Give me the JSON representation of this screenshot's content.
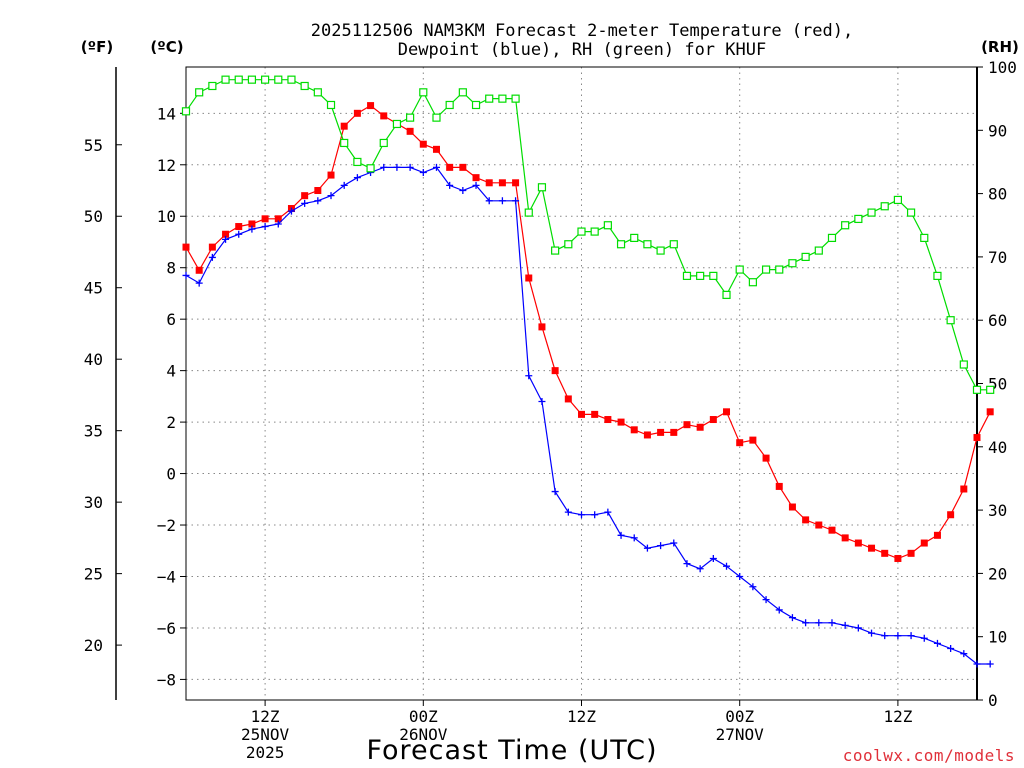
{
  "chart_data": {
    "type": "line",
    "title_line1": "2025112506 NAM3KM Forecast 2-meter Temperature (red),",
    "title_line2": "Dewpoint (blue), RH (green) for KHUF",
    "xlabel": "Forecast Time (UTC)",
    "unit_labels": {
      "fahrenheit": "(ºF)",
      "celsius": "(ºC)",
      "rh": "(RH)"
    },
    "credit": "coolwx.com/models",
    "x_hours_range": [
      0,
      60
    ],
    "y_celsius_range": [
      -8.8,
      15.8
    ],
    "y_rh_range": [
      0,
      100
    ],
    "celsius_ticks": [
      14,
      12,
      10,
      8,
      6,
      4,
      2,
      0,
      -2,
      -4,
      -6,
      -8
    ],
    "celsius_tick_labels": [
      "14",
      "12",
      "10",
      "8",
      "6",
      "4",
      "2",
      "0",
      "−2",
      "−4",
      "−6",
      "−8"
    ],
    "fahrenheit_ticks": [
      55,
      50,
      45,
      40,
      35,
      30,
      25,
      20
    ],
    "rh_ticks": [
      0,
      10,
      20,
      30,
      40,
      50,
      60,
      70,
      80,
      90,
      100
    ],
    "x_ticks": [
      {
        "hour": 6,
        "line1": "12Z",
        "line2": "25NOV",
        "line3": "2025"
      },
      {
        "hour": 18,
        "line1": "00Z",
        "line2": "26NOV",
        "line3": ""
      },
      {
        "hour": 30,
        "line1": "12Z",
        "line2": "",
        "line3": ""
      },
      {
        "hour": 42,
        "line1": "00Z",
        "line2": "27NOV",
        "line3": ""
      },
      {
        "hour": 54,
        "line1": "12Z",
        "line2": "",
        "line3": ""
      }
    ],
    "series": [
      {
        "name": "Temperature (°C)",
        "axis": "celsius",
        "color": "#ff0000",
        "marker": "filled-square",
        "values": [
          [
            0,
            8.8
          ],
          [
            1,
            7.9
          ],
          [
            2,
            8.8
          ],
          [
            3,
            9.3
          ],
          [
            4,
            9.6
          ],
          [
            5,
            9.7
          ],
          [
            6,
            9.9
          ],
          [
            7,
            9.9
          ],
          [
            8,
            10.3
          ],
          [
            9,
            10.8
          ],
          [
            10,
            11.0
          ],
          [
            11,
            11.6
          ],
          [
            12,
            13.5
          ],
          [
            13,
            14.0
          ],
          [
            14,
            14.3
          ],
          [
            15,
            13.9
          ],
          [
            16,
            13.6
          ],
          [
            17,
            13.3
          ],
          [
            18,
            12.8
          ],
          [
            19,
            12.6
          ],
          [
            20,
            11.9
          ],
          [
            21,
            11.9
          ],
          [
            22,
            11.5
          ],
          [
            23,
            11.3
          ],
          [
            24,
            11.3
          ],
          [
            25,
            11.3
          ],
          [
            26,
            7.6
          ],
          [
            27,
            5.7
          ],
          [
            28,
            4.0
          ],
          [
            29,
            2.9
          ],
          [
            30,
            2.3
          ],
          [
            31,
            2.3
          ],
          [
            32,
            2.1
          ],
          [
            33,
            2.0
          ],
          [
            34,
            1.7
          ],
          [
            35,
            1.5
          ],
          [
            36,
            1.6
          ],
          [
            37,
            1.6
          ],
          [
            38,
            1.9
          ],
          [
            39,
            1.8
          ],
          [
            40,
            2.1
          ],
          [
            41,
            2.4
          ],
          [
            42,
            1.2
          ],
          [
            43,
            1.3
          ],
          [
            44,
            0.6
          ],
          [
            45,
            -0.5
          ],
          [
            46,
            -1.3
          ],
          [
            47,
            -1.8
          ],
          [
            48,
            -2.0
          ],
          [
            49,
            -2.2
          ],
          [
            50,
            -2.5
          ],
          [
            51,
            -2.7
          ],
          [
            52,
            -2.9
          ],
          [
            53,
            -3.1
          ],
          [
            54,
            -3.3
          ],
          [
            55,
            -3.1
          ],
          [
            56,
            -2.7
          ],
          [
            57,
            -2.4
          ],
          [
            58,
            -1.6
          ],
          [
            59,
            -0.6
          ],
          [
            60,
            1.4
          ],
          [
            61,
            2.4
          ]
        ]
      },
      {
        "name": "Dewpoint (°C)",
        "axis": "celsius",
        "color": "#0000ff",
        "marker": "plus",
        "values": [
          [
            0,
            7.7
          ],
          [
            1,
            7.4
          ],
          [
            2,
            8.4
          ],
          [
            3,
            9.1
          ],
          [
            4,
            9.3
          ],
          [
            5,
            9.5
          ],
          [
            6,
            9.6
          ],
          [
            7,
            9.7
          ],
          [
            8,
            10.2
          ],
          [
            9,
            10.5
          ],
          [
            10,
            10.6
          ],
          [
            11,
            10.8
          ],
          [
            12,
            11.2
          ],
          [
            13,
            11.5
          ],
          [
            14,
            11.7
          ],
          [
            15,
            11.9
          ],
          [
            16,
            11.9
          ],
          [
            17,
            11.9
          ],
          [
            18,
            11.7
          ],
          [
            19,
            11.9
          ],
          [
            20,
            11.2
          ],
          [
            21,
            11.0
          ],
          [
            22,
            11.2
          ],
          [
            23,
            10.6
          ],
          [
            24,
            10.6
          ],
          [
            25,
            10.6
          ],
          [
            26,
            3.8
          ],
          [
            27,
            2.8
          ],
          [
            28,
            -0.7
          ],
          [
            29,
            -1.5
          ],
          [
            30,
            -1.6
          ],
          [
            31,
            -1.6
          ],
          [
            32,
            -1.5
          ],
          [
            33,
            -2.4
          ],
          [
            34,
            -2.5
          ],
          [
            35,
            -2.9
          ],
          [
            36,
            -2.8
          ],
          [
            37,
            -2.7
          ],
          [
            38,
            -3.5
          ],
          [
            39,
            -3.7
          ],
          [
            40,
            -3.3
          ],
          [
            41,
            -3.6
          ],
          [
            42,
            -4.0
          ],
          [
            43,
            -4.4
          ],
          [
            44,
            -4.9
          ],
          [
            45,
            -5.3
          ],
          [
            46,
            -5.6
          ],
          [
            47,
            -5.8
          ],
          [
            48,
            -5.8
          ],
          [
            49,
            -5.8
          ],
          [
            50,
            -5.9
          ],
          [
            51,
            -6.0
          ],
          [
            52,
            -6.2
          ],
          [
            53,
            -6.3
          ],
          [
            54,
            -6.3
          ],
          [
            55,
            -6.3
          ],
          [
            56,
            -6.4
          ],
          [
            57,
            -6.6
          ],
          [
            58,
            -6.8
          ],
          [
            59,
            -7.0
          ],
          [
            60,
            -7.4
          ],
          [
            61,
            -7.4
          ]
        ]
      },
      {
        "name": "RH (%)",
        "axis": "rh",
        "color": "#00dd00",
        "marker": "open-square",
        "values": [
          [
            0,
            93
          ],
          [
            1,
            96
          ],
          [
            2,
            97
          ],
          [
            3,
            98
          ],
          [
            4,
            98
          ],
          [
            5,
            98
          ],
          [
            6,
            98
          ],
          [
            7,
            98
          ],
          [
            8,
            98
          ],
          [
            9,
            97
          ],
          [
            10,
            96
          ],
          [
            11,
            94
          ],
          [
            12,
            88
          ],
          [
            13,
            85
          ],
          [
            14,
            84
          ],
          [
            15,
            88
          ],
          [
            16,
            91
          ],
          [
            17,
            92
          ],
          [
            18,
            96
          ],
          [
            19,
            92
          ],
          [
            20,
            94
          ],
          [
            21,
            96
          ],
          [
            22,
            94
          ],
          [
            23,
            95
          ],
          [
            24,
            95
          ],
          [
            25,
            95
          ],
          [
            26,
            77
          ],
          [
            27,
            81
          ],
          [
            28,
            71
          ],
          [
            29,
            72
          ],
          [
            30,
            74
          ],
          [
            31,
            74
          ],
          [
            32,
            75
          ],
          [
            33,
            72
          ],
          [
            34,
            73
          ],
          [
            35,
            72
          ],
          [
            36,
            71
          ],
          [
            37,
            72
          ],
          [
            38,
            67
          ],
          [
            39,
            67
          ],
          [
            40,
            67
          ],
          [
            41,
            64
          ],
          [
            42,
            68
          ],
          [
            43,
            66
          ],
          [
            44,
            68
          ],
          [
            45,
            68
          ],
          [
            46,
            69
          ],
          [
            47,
            70
          ],
          [
            48,
            71
          ],
          [
            49,
            73
          ],
          [
            50,
            75
          ],
          [
            51,
            76
          ],
          [
            52,
            77
          ],
          [
            53,
            78
          ],
          [
            54,
            79
          ],
          [
            55,
            77
          ],
          [
            56,
            73
          ],
          [
            57,
            67
          ],
          [
            58,
            60
          ],
          [
            59,
            53
          ],
          [
            60,
            49
          ],
          [
            61,
            49
          ]
        ]
      }
    ]
  }
}
